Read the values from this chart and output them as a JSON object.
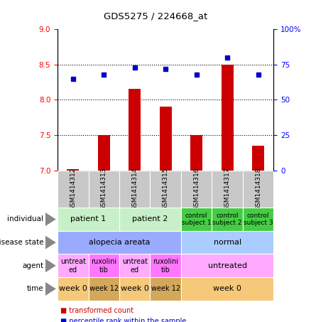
{
  "title": "GDS5275 / 224668_at",
  "samples": [
    "GSM1414312",
    "GSM1414313",
    "GSM1414314",
    "GSM1414315",
    "GSM1414316",
    "GSM1414317",
    "GSM1414318"
  ],
  "transformed_count": [
    7.02,
    7.5,
    8.15,
    7.9,
    7.5,
    8.5,
    7.35
  ],
  "percentile_rank": [
    65,
    68,
    73,
    72,
    68,
    80,
    68
  ],
  "bar_color": "#cc0000",
  "dot_color": "#0000cc",
  "ylim_left": [
    7,
    9
  ],
  "ylim_right": [
    0,
    100
  ],
  "yticks_left": [
    7,
    7.5,
    8,
    8.5,
    9
  ],
  "yticks_right": [
    0,
    25,
    50,
    75,
    100
  ],
  "ytick_labels_right": [
    "0",
    "25",
    "50",
    "75",
    "100%"
  ],
  "dotted_lines": [
    7.5,
    8.0,
    8.5
  ],
  "individual_cells": [
    {
      "text": "patient 1",
      "span": [
        0,
        2
      ],
      "color": "#c8f0c8",
      "fontsize": 8
    },
    {
      "text": "patient 2",
      "span": [
        2,
        4
      ],
      "color": "#c8f0c8",
      "fontsize": 8
    },
    {
      "text": "control\nsubject 1",
      "span": [
        4,
        5
      ],
      "color": "#44cc44",
      "fontsize": 6.5
    },
    {
      "text": "control\nsubject 2",
      "span": [
        5,
        6
      ],
      "color": "#44cc44",
      "fontsize": 6.5
    },
    {
      "text": "control\nsubject 3",
      "span": [
        6,
        7
      ],
      "color": "#44cc44",
      "fontsize": 6.5
    }
  ],
  "disease_cells": [
    {
      "text": "alopecia areata",
      "span": [
        0,
        4
      ],
      "color": "#99aaff",
      "fontsize": 8
    },
    {
      "text": "normal",
      "span": [
        4,
        7
      ],
      "color": "#aaccff",
      "fontsize": 8
    }
  ],
  "agent_cells": [
    {
      "text": "untreat\ned",
      "span": [
        0,
        1
      ],
      "color": "#ffaaff",
      "fontsize": 7
    },
    {
      "text": "ruxolini\ntib",
      "span": [
        1,
        2
      ],
      "color": "#ff77ff",
      "fontsize": 7
    },
    {
      "text": "untreat\ned",
      "span": [
        2,
        3
      ],
      "color": "#ffaaff",
      "fontsize": 7
    },
    {
      "text": "ruxolini\ntib",
      "span": [
        3,
        4
      ],
      "color": "#ff77ff",
      "fontsize": 7
    },
    {
      "text": "untreated",
      "span": [
        4,
        7
      ],
      "color": "#ffaaff",
      "fontsize": 8
    }
  ],
  "time_cells": [
    {
      "text": "week 0",
      "span": [
        0,
        1
      ],
      "color": "#f5c87a",
      "fontsize": 8
    },
    {
      "text": "week 12",
      "span": [
        1,
        2
      ],
      "color": "#d4a85a",
      "fontsize": 7
    },
    {
      "text": "week 0",
      "span": [
        2,
        3
      ],
      "color": "#f5c87a",
      "fontsize": 8
    },
    {
      "text": "week 12",
      "span": [
        3,
        4
      ],
      "color": "#d4a85a",
      "fontsize": 7
    },
    {
      "text": "week 0",
      "span": [
        4,
        7
      ],
      "color": "#f5c87a",
      "fontsize": 8
    }
  ],
  "sample_bg_color": "#c8c8c8",
  "row_labels": [
    "individual",
    "disease state",
    "agent",
    "time"
  ],
  "legend_items": [
    {
      "color": "#cc0000",
      "label": "transformed count"
    },
    {
      "color": "#0000cc",
      "label": "percentile rank within the sample"
    }
  ]
}
